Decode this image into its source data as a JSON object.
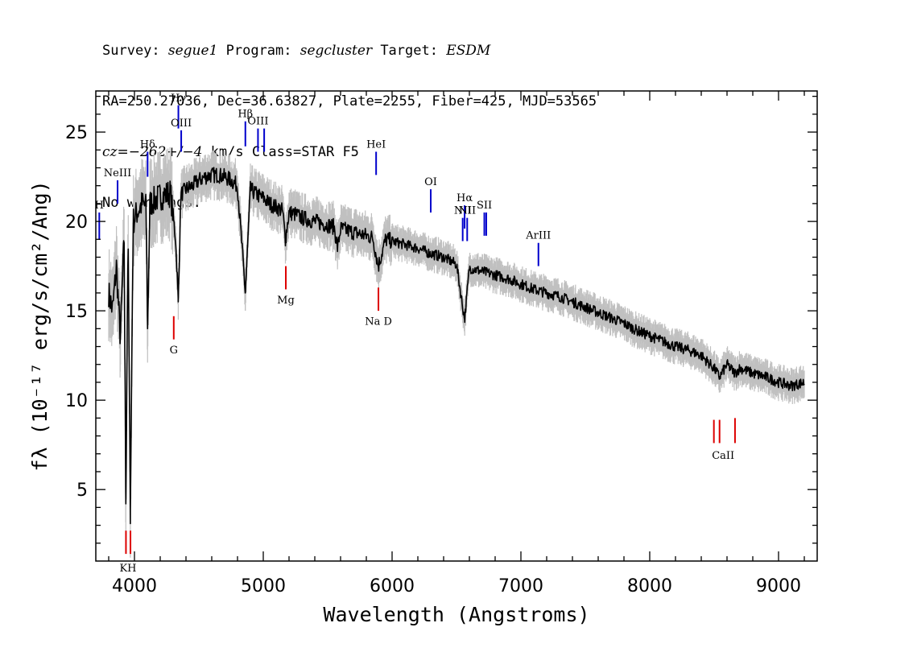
{
  "header": {
    "line1": {
      "survey_label": "Survey: ",
      "survey": "segue1",
      "program_label": " Program: ",
      "program": "segcluster",
      "target_label": " Target: ",
      "target": "ESDM"
    },
    "line2": "RA=250.27036, Dec=36.63827, Plate=2255, Fiber=425, MJD=53565",
    "line3": {
      "cz": "cz=−262+/−4",
      "rest": " km/s Class=STAR F5"
    },
    "line4": "No warnings."
  },
  "colors": {
    "flux": "#000000",
    "error_band": "#c0c0c0",
    "emission_line": "#0000cc",
    "absorption_line": "#dd0000"
  },
  "chart_data": {
    "type": "line",
    "title": "",
    "xlabel": "Wavelength (Angstroms)",
    "ylabel": "fλ (10⁻¹⁷ erg/s/cm²/Ang)",
    "xlim": [
      3700,
      9300
    ],
    "ylim": [
      1,
      27.3
    ],
    "x_ticks": [
      4000,
      5000,
      6000,
      7000,
      8000,
      9000
    ],
    "y_ticks": [
      5,
      10,
      15,
      20,
      25
    ],
    "grid": false,
    "series": [
      {
        "role": "flux",
        "x": [
          3800,
          3830,
          3860,
          3890,
          3920,
          3933,
          3950,
          3968,
          3990,
          4020,
          4060,
          4090,
          4102,
          4120,
          4160,
          4200,
          4240,
          4280,
          4320,
          4340,
          4360,
          4400,
          4450,
          4500,
          4550,
          4600,
          4650,
          4700,
          4750,
          4800,
          4861,
          4900,
          4950,
          5000,
          5050,
          5100,
          5150,
          5172,
          5200,
          5250,
          5300,
          5350,
          5400,
          5450,
          5500,
          5550,
          5577,
          5600,
          5650,
          5700,
          5750,
          5800,
          5850,
          5893,
          5950,
          6000,
          6100,
          6200,
          6300,
          6400,
          6500,
          6563,
          6600,
          6700,
          6800,
          6900,
          7000,
          7100,
          7200,
          7300,
          7400,
          7500,
          7600,
          7700,
          7800,
          7900,
          8000,
          8100,
          8200,
          8300,
          8400,
          8498,
          8542,
          8600,
          8662,
          8700,
          8800,
          8900,
          9000,
          9100,
          9200
        ],
        "y": [
          16.0,
          15.0,
          17.5,
          13.5,
          19.0,
          4.2,
          19.5,
          3.8,
          20.0,
          20.5,
          21.0,
          20.8,
          14.0,
          21.0,
          21.2,
          21.4,
          21.5,
          21.6,
          19.0,
          15.5,
          21.5,
          21.8,
          22.0,
          22.3,
          22.5,
          22.6,
          22.6,
          22.5,
          22.3,
          22.0,
          16.0,
          21.8,
          21.5,
          21.3,
          21.0,
          20.8,
          20.6,
          19.0,
          20.5,
          20.4,
          20.2,
          20.1,
          20.0,
          19.9,
          19.8,
          19.7,
          18.5,
          19.6,
          19.5,
          19.4,
          19.3,
          19.2,
          19.1,
          17.5,
          19.0,
          18.9,
          18.7,
          18.5,
          18.2,
          18.0,
          17.6,
          14.5,
          17.4,
          17.2,
          17.0,
          16.8,
          16.5,
          16.2,
          16.0,
          15.8,
          15.5,
          15.2,
          14.9,
          14.6,
          14.3,
          13.9,
          13.6,
          13.3,
          13.0,
          12.8,
          12.5,
          11.8,
          11.3,
          12.0,
          11.5,
          11.8,
          11.5,
          11.3,
          11.0,
          10.8,
          11.0
        ]
      }
    ],
    "emission_lines": [
      {
        "label": "H",
        "wavelength": 3727,
        "top": 20.5,
        "bottom": 19.0
      },
      {
        "label": "NeIII",
        "wavelength": 3869,
        "top": 22.3,
        "bottom": 21.0
      },
      {
        "label": "Hδ",
        "wavelength": 4102,
        "top": 23.9,
        "bottom": 22.5
      },
      {
        "label": "Hγ",
        "wavelength": 4341,
        "top": 26.5,
        "bottom": 25.2
      },
      {
        "label": "OIII",
        "wavelength": 4363,
        "top": 25.1,
        "bottom": 23.9
      },
      {
        "label": "Hβ",
        "wavelength": 4861,
        "top": 25.6,
        "bottom": 24.2
      },
      {
        "label": "OIII",
        "wavelength": 4959,
        "top": 25.2,
        "bottom": 23.9
      },
      {
        "label": "",
        "wavelength": 5007,
        "top": 25.2,
        "bottom": 23.9
      },
      {
        "label": "HeI",
        "wavelength": 5876,
        "top": 23.9,
        "bottom": 22.6
      },
      {
        "label": "OI",
        "wavelength": 6300,
        "top": 21.8,
        "bottom": 20.5
      },
      {
        "label": "NII",
        "wavelength": 6548,
        "top": 20.2,
        "bottom": 18.9
      },
      {
        "label": "Hα",
        "wavelength": 6563,
        "top": 20.9,
        "bottom": 19.6
      },
      {
        "label": "NII",
        "wavelength": 6583,
        "top": 20.2,
        "bottom": 18.9
      },
      {
        "label": "SII",
        "wavelength": 6716,
        "top": 20.5,
        "bottom": 19.2
      },
      {
        "label": "",
        "wavelength": 6731,
        "top": 20.5,
        "bottom": 19.2
      },
      {
        "label": "ArIII",
        "wavelength": 7136,
        "top": 18.8,
        "bottom": 17.5
      }
    ],
    "absorption_lines": [
      {
        "label": "K",
        "wavelength": 3934,
        "top": 2.7,
        "bottom": 1.4
      },
      {
        "label": "H",
        "wavelength": 3969,
        "top": 2.7,
        "bottom": 1.4
      },
      {
        "label": "G",
        "wavelength": 4305,
        "top": 14.7,
        "bottom": 13.4
      },
      {
        "label": "Mg",
        "wavelength": 5175,
        "top": 17.5,
        "bottom": 16.2
      },
      {
        "label": "Na  D",
        "wavelength": 5894,
        "top": 16.3,
        "bottom": 15.0
      },
      {
        "label": "CaII",
        "wavelength": 8498,
        "top": 8.9,
        "bottom": 7.6
      },
      {
        "label": "",
        "wavelength": 8542,
        "top": 8.9,
        "bottom": 7.6
      },
      {
        "label": "",
        "wavelength": 8662,
        "top": 9.0,
        "bottom": 7.6
      }
    ],
    "absorption_label_groups": [
      {
        "label": "KH",
        "wavelength": 3950,
        "y": 0.6
      },
      {
        "label": "G",
        "wavelength": 4305,
        "y": 12.8
      },
      {
        "label": "Mg",
        "wavelength": 5175,
        "y": 15.6
      },
      {
        "label": "Na  D",
        "wavelength": 5894,
        "y": 14.4
      },
      {
        "label": "CaII",
        "wavelength": 8570,
        "y": 6.9
      }
    ]
  }
}
